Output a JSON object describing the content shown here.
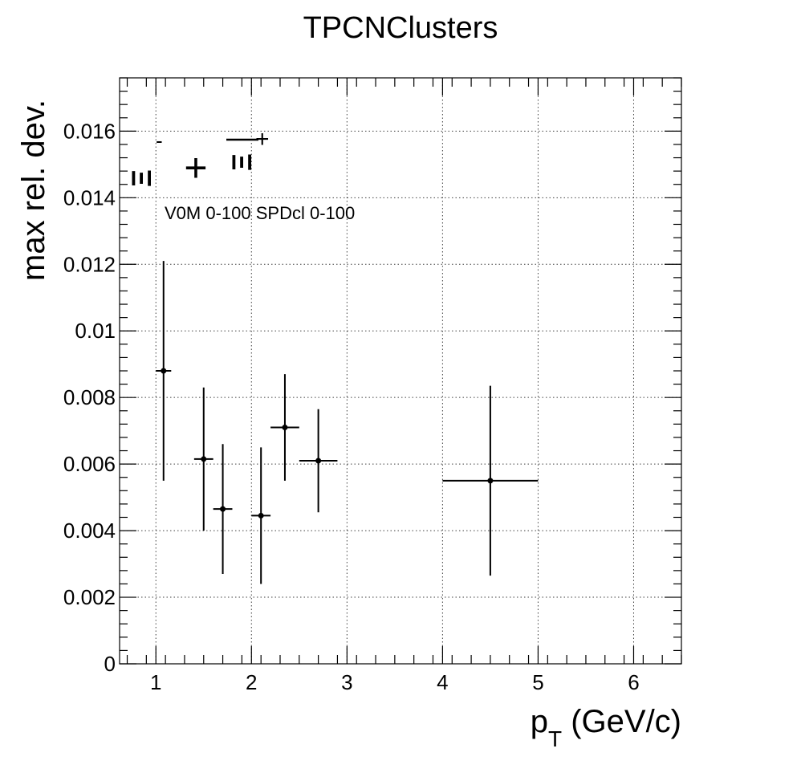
{
  "chart_data": {
    "type": "scatter",
    "title": "TPCNClusters",
    "xlabel_main": "p",
    "xlabel_sub": "T",
    "xlabel_rest": " (GeV/c)",
    "ylabel": "max rel. dev.",
    "xlim": [
      0.62,
      6.5
    ],
    "ylim": [
      0,
      0.0176
    ],
    "x_ticks": [
      1,
      2,
      3,
      4,
      5,
      6
    ],
    "x_tick_labels": [
      "1",
      "2",
      "3",
      "4",
      "5",
      "6"
    ],
    "y_ticks": [
      0,
      0.002,
      0.004,
      0.006,
      0.008,
      0.01,
      0.012,
      0.014,
      0.016
    ],
    "y_tick_labels": [
      "0",
      "0.002",
      "0.004",
      "0.006",
      "0.008",
      "0.01",
      "0.012",
      "0.014",
      "0.016"
    ],
    "grid": true,
    "series": [
      {
        "name": "Xi + anti-Xi",
        "points": [
          {
            "x": 1.08,
            "xerr": 0.08,
            "y": 0.0088,
            "yerr": 0.0033
          },
          {
            "x": 1.5,
            "xerr": 0.1,
            "y": 0.00615,
            "yerr": 0.00215
          },
          {
            "x": 1.7,
            "xerr": 0.1,
            "y": 0.00465,
            "yerr": 0.00195
          },
          {
            "x": 2.1,
            "xerr": 0.1,
            "y": 0.00445,
            "yerr": 0.00205
          },
          {
            "x": 2.35,
            "xerr": 0.15,
            "y": 0.0071,
            "yerr": 0.0016
          },
          {
            "x": 2.7,
            "xerr": 0.2,
            "y": 0.0061,
            "yerr": 0.00155
          },
          {
            "x": 4.5,
            "xerr": 0.5,
            "y": 0.0055,
            "yerr": 0.00285
          }
        ]
      }
    ],
    "annotations": {
      "particle_1": "Ξ",
      "particle_1_charge": "-",
      "plus_sign": "+",
      "particle_2": "Ξ",
      "particle_2_charge": "+",
      "selection": "V0M 0-100 SPDcl 0-100"
    }
  }
}
